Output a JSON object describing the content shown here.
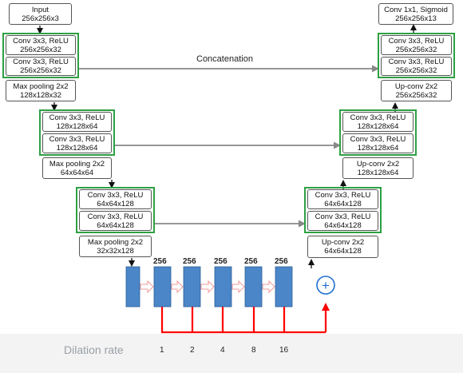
{
  "encoder": {
    "input": {
      "l1": "Input",
      "l2": "256x256x3"
    },
    "b1c1": {
      "l1": "Conv 3x3, ReLU",
      "l2": "256x256x32"
    },
    "b1c2": {
      "l1": "Conv 3x3, ReLU",
      "l2": "256x256x32"
    },
    "b1p": {
      "l1": "Max pooling 2x2",
      "l2": "128x128x32"
    },
    "b2c1": {
      "l1": "Conv 3x3, ReLU",
      "l2": "128x128x64"
    },
    "b2c2": {
      "l1": "Conv 3x3, ReLU",
      "l2": "128x128x64"
    },
    "b2p": {
      "l1": "Max pooling 2x2",
      "l2": "64x64x64"
    },
    "b3c1": {
      "l1": "Conv 3x3, ReLU",
      "l2": "64x64x128"
    },
    "b3c2": {
      "l1": "Conv 3x3, ReLU",
      "l2": "64x64x128"
    },
    "b3p": {
      "l1": "Max pooling 2x2",
      "l2": "32x32x128"
    }
  },
  "decoder": {
    "out": {
      "l1": "Conv 1x1, Sigmoid",
      "l2": "256x256x13"
    },
    "d1c1": {
      "l1": "Conv 3x3, ReLU",
      "l2": "256x256x32"
    },
    "d1c2": {
      "l1": "Conv 3x3, ReLU",
      "l2": "256x256x32"
    },
    "d1u": {
      "l1": "Up-conv 2x2",
      "l2": "256x256x32"
    },
    "d2c1": {
      "l1": "Conv 3x3, ReLU",
      "l2": "128x128x64"
    },
    "d2c2": {
      "l1": "Conv 3x3, ReLU",
      "l2": "128x128x64"
    },
    "d2u": {
      "l1": "Up-conv 2x2",
      "l2": "128x128x64"
    },
    "d3c1": {
      "l1": "Conv 3x3, ReLU",
      "l2": "64x64x128"
    },
    "d3c2": {
      "l1": "Conv 3x3, ReLU",
      "l2": "64x64x128"
    },
    "d3u": {
      "l1": "Up-conv 2x2",
      "l2": "64x64x128"
    }
  },
  "concatenation_label": "Concatenation",
  "bottleneck": {
    "channels": [
      "256",
      "256",
      "256",
      "256",
      "256"
    ],
    "dilation_label": "Dilation rate",
    "dilation_rates": [
      "1",
      "2",
      "4",
      "8",
      "16"
    ],
    "sum_symbol": "+"
  },
  "colors": {
    "green_group": "#2ea043",
    "block_blue": "#4a86c8",
    "red_skip": "#ff0000",
    "arrow_gray": "#888888",
    "sum_blue": "#1f6fd1"
  }
}
